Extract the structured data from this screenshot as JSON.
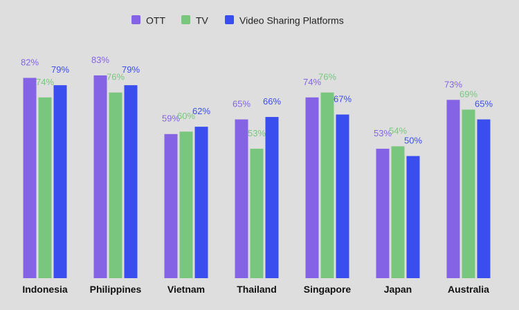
{
  "chart_data": {
    "type": "bar",
    "title": "",
    "xlabel": "",
    "ylabel": "",
    "ylim": [
      0,
      100
    ],
    "grid": false,
    "legend_position": "top-center",
    "unit_suffix": "%",
    "categories": [
      "Indonesia",
      "Philippines",
      "Vietnam",
      "Thailand",
      "Singapore",
      "Japan",
      "Australia"
    ],
    "series": [
      {
        "name": "OTT",
        "color": "#8464e4",
        "label_color": "#8464e4",
        "values": [
          82,
          83,
          59,
          65,
          74,
          53,
          73
        ]
      },
      {
        "name": "TV",
        "color": "#79c67e",
        "label_color": "#79c67e",
        "values": [
          74,
          76,
          60,
          53,
          76,
          54,
          69
        ]
      },
      {
        "name": "Video Sharing Platforms",
        "color": "#3a4ef0",
        "label_color": "#3a4ef0",
        "values": [
          79,
          79,
          62,
          66,
          67,
          50,
          65
        ]
      }
    ]
  }
}
